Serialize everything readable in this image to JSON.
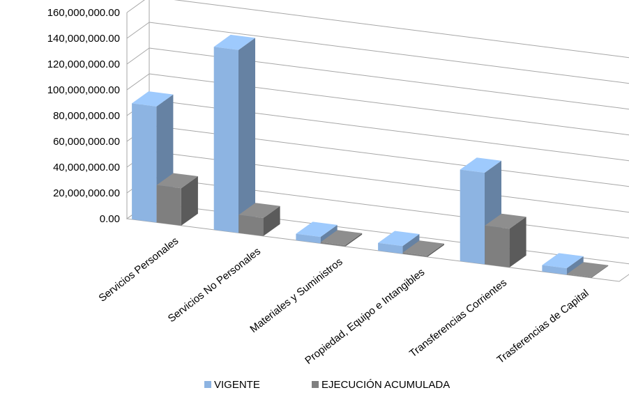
{
  "chart_data": {
    "type": "bar",
    "style": "3d-clustered-column",
    "categories": [
      "Servicios  Personales",
      "Servicios No Personales",
      "Materiales y Suministros",
      "Propiedad, Equipo e Intangibles",
      "Transferencias Corrientes",
      "Trasferencias de Capital"
    ],
    "series": [
      {
        "name": "VIGENTE",
        "color": "#8db4e2",
        "values": [
          90000000,
          142000000,
          5000000,
          6000000,
          71000000,
          5000000
        ]
      },
      {
        "name": "EJECUCIÓN ACUMULADA",
        "color": "#7f7f7f",
        "values": [
          29000000,
          14000000,
          1000000,
          1000000,
          30000000,
          500000
        ]
      }
    ],
    "y_ticks": [
      "0.00",
      "20,000,000.00",
      "40,000,000.00",
      "60,000,000.00",
      "80,000,000.00",
      "100,000,000.00",
      "120,000,000.00",
      "140,000,000.00",
      "160,000,000.00"
    ],
    "ylim": [
      0,
      160000000
    ],
    "grid": true,
    "legend": "bottom"
  }
}
